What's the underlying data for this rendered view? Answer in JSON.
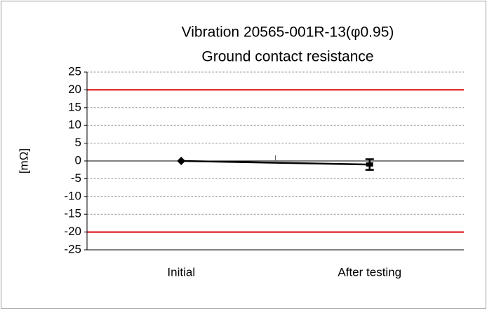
{
  "chart_data": {
    "type": "line",
    "title": [
      "Vibration 20565-001R-13(φ0.95)",
      "Ground contact resistance"
    ],
    "y_label": "[mΩ]",
    "categories": [
      "Initial",
      "After testing"
    ],
    "series": [
      {
        "color": "#000000",
        "values": [
          0,
          -1
        ],
        "errors": [
          0,
          1.5
        ]
      }
    ],
    "ylim": [
      -25,
      25
    ],
    "yticks": [
      -25,
      -20,
      -15,
      -10,
      -5,
      0,
      5,
      10,
      15,
      20,
      25
    ],
    "grid": true,
    "reference_lines": [
      {
        "value": 20,
        "color": "#e00000"
      },
      {
        "value": -20,
        "color": "#e00000"
      }
    ]
  }
}
